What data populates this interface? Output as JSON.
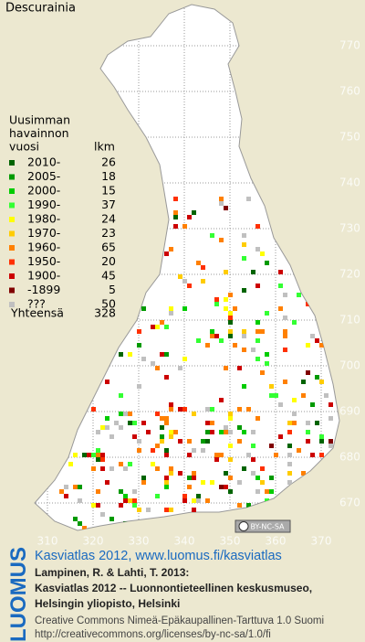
{
  "map": {
    "title": "Descurainia",
    "grid": {
      "x_labels": [
        310,
        320,
        330,
        340,
        350,
        360,
        370
      ],
      "y_labels": [
        770,
        760,
        750,
        740,
        730,
        720,
        710,
        700,
        690,
        680,
        670
      ]
    },
    "legend": {
      "header": [
        "Uusimman",
        "havainnon",
        "vuosi"
      ],
      "count_header": "lkm",
      "rows": [
        {
          "label": "2010-",
          "count": 26,
          "color": "#006400"
        },
        {
          "label": "2005-",
          "count": 18,
          "color": "#009a00"
        },
        {
          "label": "2000-",
          "count": 15,
          "color": "#00cc00"
        },
        {
          "label": "1990-",
          "count": 37,
          "color": "#33ff33"
        },
        {
          "label": "1980-",
          "count": 24,
          "color": "#ffff00"
        },
        {
          "label": "1970-",
          "count": 23,
          "color": "#ffcc00"
        },
        {
          "label": "1960-",
          "count": 65,
          "color": "#ff8000"
        },
        {
          "label": "1950-",
          "count": 20,
          "color": "#ff3000"
        },
        {
          "label": "1900-",
          "count": 45,
          "color": "#cc0000"
        },
        {
          "label": "-1899",
          "count": 5,
          "color": "#800000"
        },
        {
          "label": "???",
          "count": 50,
          "color": "#c0c0c0"
        }
      ],
      "total_label": "Yhteensä",
      "total": 328
    },
    "license_badge": "BY-NC-SA"
  },
  "footer": {
    "brand": "LUOMUS",
    "headline": "Kasviatlas 2012, www.luomus.fi/kasviatlas",
    "citation": [
      "Lampinen, R. & Lahti, T. 2013:",
      "Kasviatlas 2012 -- Luonnontieteellinen keskusmuseo,",
      "Helsingin yliopisto, Helsinki"
    ],
    "license": [
      "Creative Commons Nimeä-Epäkaupallinen-Tarttuva 1.0 Suomi",
      "http://creativecommons.org/licenses/by-nc-sa/1.0/fi"
    ]
  }
}
